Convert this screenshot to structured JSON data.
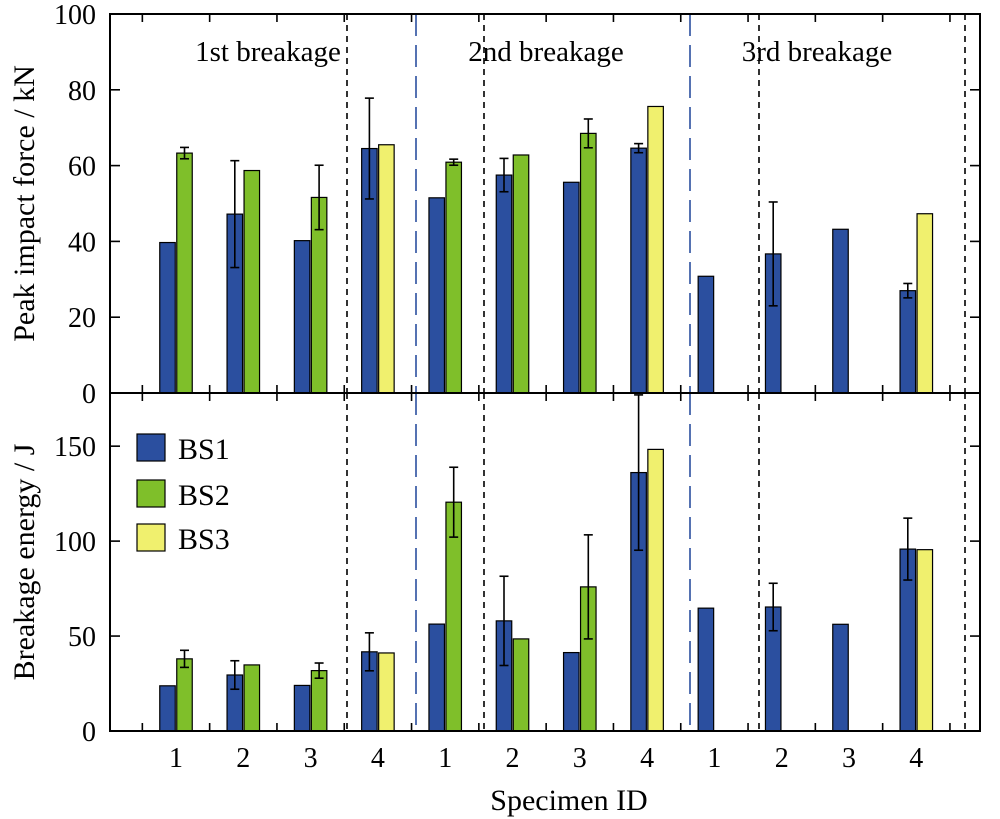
{
  "chart_data": {
    "type": "bar",
    "x_axis_label": "Specimen ID",
    "specimen_ids": [
      "1",
      "2",
      "3",
      "4",
      "1",
      "2",
      "3",
      "4",
      "1",
      "2",
      "3",
      "4"
    ],
    "sections": [
      "1st breakage",
      "2nd breakage",
      "3rd breakage"
    ],
    "legend": {
      "placement": "top-left",
      "entries": [
        {
          "name": "BS1",
          "color": "#2b4f9f"
        },
        {
          "name": "BS2",
          "color": "#7fbf2a"
        },
        {
          "name": "BS3",
          "color": "#f0f06e"
        }
      ]
    },
    "panels": [
      {
        "ylabel": "Peak impact force / kN",
        "ylim": [
          0,
          100
        ],
        "yticks": [
          0,
          20,
          40,
          60,
          80,
          100
        ],
        "series": [
          {
            "name": "BS1",
            "values": [
              39.7,
              47.2,
              40.2,
              64.5,
              51.5,
              57.5,
              55.6,
              64.6,
              30.8,
              36.7,
              43.2,
              27.0
            ],
            "errors": [
              null,
              14.1,
              null,
              13.3,
              null,
              4.4,
              null,
              1.2,
              null,
              13.7,
              null,
              1.9
            ]
          },
          {
            "name": "BS2",
            "values": [
              63.3,
              58.7,
              51.6,
              null,
              60.9,
              62.8,
              68.5,
              null,
              null,
              null,
              null,
              null
            ],
            "errors": [
              1.5,
              null,
              8.5,
              null,
              0.8,
              null,
              3.8,
              null,
              null,
              null,
              null,
              null
            ]
          },
          {
            "name": "BS3",
            "values": [
              null,
              null,
              null,
              65.5,
              null,
              null,
              null,
              75.6,
              null,
              null,
              null,
              47.3
            ],
            "errors": [
              null,
              null,
              null,
              null,
              null,
              null,
              null,
              null,
              null,
              null,
              null,
              null
            ]
          }
        ]
      },
      {
        "ylabel": "Breakage energy / J",
        "ylim": [
          0,
          178
        ],
        "yticks": [
          0,
          50,
          100,
          150
        ],
        "series": [
          {
            "name": "BS1",
            "values": [
              23.8,
              29.5,
              24.0,
              41.7,
              56.3,
              58.0,
              41.3,
              136.1,
              64.7,
              65.3,
              56.2,
              95.8
            ],
            "errors": [
              null,
              7.5,
              null,
              10.0,
              null,
              23.5,
              null,
              40.9,
              null,
              12.5,
              null,
              16.3
            ]
          },
          {
            "name": "BS2",
            "values": [
              38.0,
              34.8,
              31.8,
              null,
              120.5,
              48.5,
              75.9,
              null,
              null,
              null,
              null,
              null
            ],
            "errors": [
              4.5,
              null,
              4.0,
              null,
              18.4,
              null,
              27.4,
              null,
              null,
              null,
              null,
              null
            ]
          },
          {
            "name": "BS3",
            "values": [
              null,
              null,
              null,
              41.1,
              null,
              null,
              null,
              148.3,
              null,
              null,
              null,
              95.5
            ],
            "errors": [
              null,
              null,
              null,
              null,
              null,
              null,
              null,
              null,
              null,
              null,
              null,
              null
            ]
          }
        ]
      }
    ]
  }
}
